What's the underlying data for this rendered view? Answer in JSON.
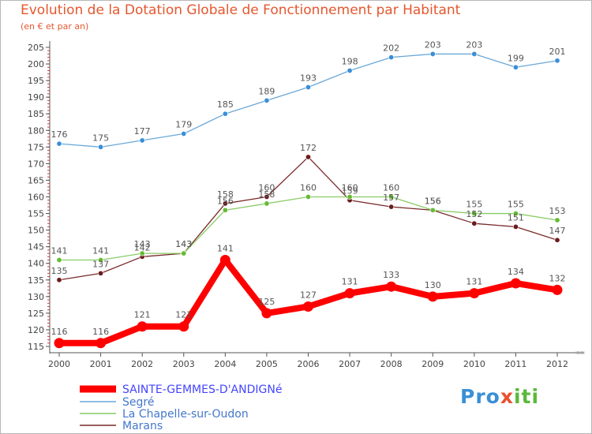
{
  "title": "Evolution de la Dotation Globale de Fonctionnement par Habitant",
  "subtitle": "(en € et par an)",
  "logo": {
    "p": "Pro",
    "x": "x",
    "i": "iti"
  },
  "chart_data": {
    "type": "line",
    "title": "Evolution de la Dotation Globale de Fonctionnement par Habitant",
    "subtitle": "(en € et par an)",
    "xlabel": "",
    "ylabel": "",
    "ylim": [
      115,
      205
    ],
    "ytick_step": 5,
    "grid": false,
    "x": [
      "2000",
      "2001",
      "2002",
      "2003",
      "2004",
      "2005",
      "2006",
      "2007",
      "2008",
      "2009",
      "2010",
      "2011",
      "2012"
    ],
    "legend_position": "bottom-left",
    "series": [
      {
        "name": "SAINTE-GEMMES-D'ANDIGNé",
        "color": "#ff0000",
        "text_color": "#4444ff",
        "values": [
          116,
          116,
          121,
          121,
          141,
          125,
          127,
          131,
          133,
          130,
          131,
          134,
          132
        ]
      },
      {
        "name": "Segré",
        "color": "#6aa8d8",
        "marker": "#3a8fd6",
        "text_color": "#4477cc",
        "values": [
          176,
          175,
          177,
          179,
          185,
          189,
          193,
          198,
          202,
          203,
          203,
          199,
          201
        ]
      },
      {
        "name": "La Chapelle-sur-Oudon",
        "color": "#88cc66",
        "marker": "#66bb33",
        "text_color": "#4477cc",
        "values": [
          141,
          141,
          143,
          143,
          156,
          158,
          160,
          160,
          160,
          156,
          155,
          155,
          153
        ]
      },
      {
        "name": "Marans",
        "color": "#7a2a2a",
        "marker": "#6b1c1c",
        "text_color": "#4477cc",
        "values": [
          135,
          137,
          142,
          143,
          158,
          160,
          172,
          159,
          157,
          156,
          152,
          151,
          147
        ]
      }
    ]
  }
}
